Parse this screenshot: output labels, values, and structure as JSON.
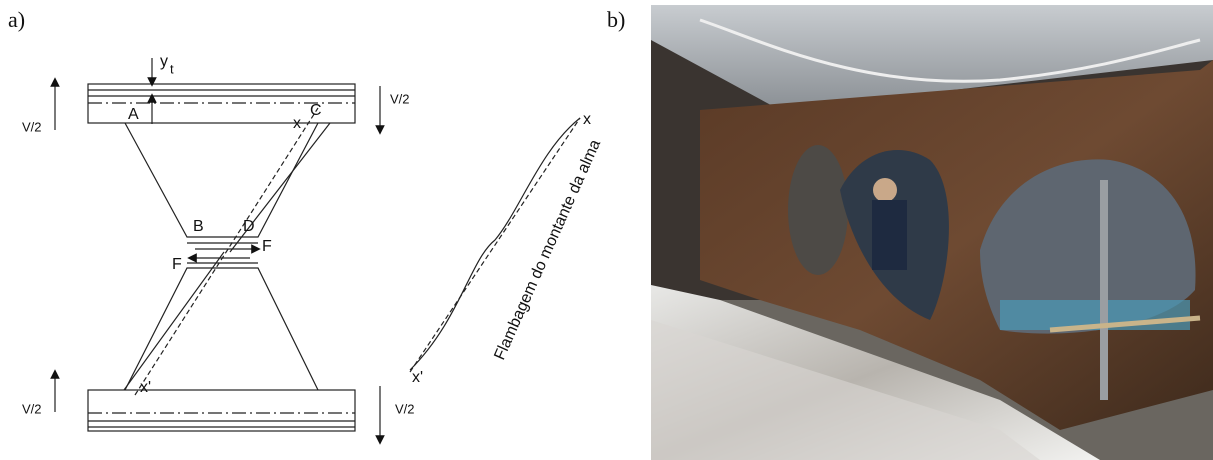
{
  "panel_labels": [
    "a)",
    "b)"
  ],
  "diagram": {
    "y_symbol": "y",
    "y_subscript": "t",
    "loads": [
      "V/2",
      "V/2",
      "V/2",
      "V/2"
    ],
    "points": {
      "A": "A",
      "B": "B",
      "C": "C",
      "D": "D"
    },
    "forces": [
      "F",
      "F"
    ],
    "axis_top": "x",
    "axis_bottom": "x'",
    "buckling_end_top": "x",
    "buckling_end_bottom": "x'",
    "buckling_label": "Flambagem do montante da alma"
  }
}
